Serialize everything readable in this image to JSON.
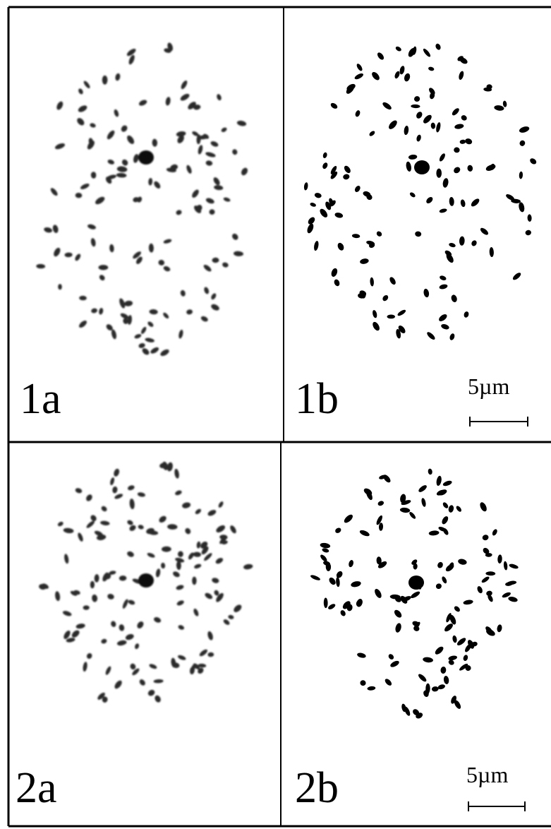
{
  "panels": [
    {
      "label": "1a"
    },
    {
      "label": "1b",
      "scale_bar": "5µm"
    },
    {
      "label": "2a"
    },
    {
      "label": "2b",
      "scale_bar": "5µm"
    }
  ]
}
